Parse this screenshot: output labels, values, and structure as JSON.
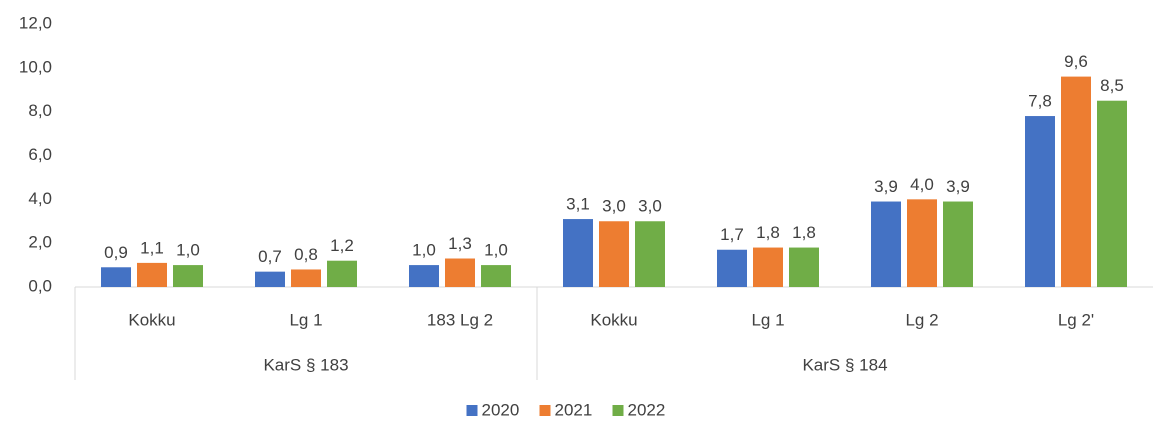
{
  "chart_data": {
    "type": "bar",
    "groups": [
      {
        "label": "KarS § 183",
        "categories": [
          "Kokku",
          "Lg 1",
          "183 Lg 2"
        ]
      },
      {
        "label": "KarS § 184",
        "categories": [
          "Kokku",
          "Lg 1",
          "Lg 2",
          "Lg 2'"
        ]
      }
    ],
    "series": [
      {
        "name": "2020",
        "color": "#4472c4",
        "values": [
          0.9,
          0.7,
          1.0,
          3.1,
          1.7,
          3.9,
          7.8
        ],
        "value_labels": [
          "0,9",
          "0,7",
          "1,0",
          "3,1",
          "1,7",
          "3,9",
          "7,8"
        ]
      },
      {
        "name": "2021",
        "color": "#ed7d31",
        "values": [
          1.1,
          0.8,
          1.3,
          3.0,
          1.8,
          4.0,
          9.6
        ],
        "value_labels": [
          "1,1",
          "0,8",
          "1,3",
          "3,0",
          "1,8",
          "4,0",
          "9,6"
        ]
      },
      {
        "name": "2022",
        "color": "#70ad47",
        "values": [
          1.0,
          1.2,
          1.0,
          3.0,
          1.8,
          3.9,
          8.5
        ],
        "value_labels": [
          "1,0",
          "1,2",
          "1,0",
          "3,0",
          "1,8",
          "3,9",
          "8,5"
        ]
      }
    ],
    "ylim": [
      0,
      12
    ],
    "yticks": [
      {
        "value": 0,
        "label": "0,0"
      },
      {
        "value": 2,
        "label": "2,0"
      },
      {
        "value": 4,
        "label": "4,0"
      },
      {
        "value": 6,
        "label": "6,0"
      },
      {
        "value": 8,
        "label": "8,0"
      },
      {
        "value": 10,
        "label": "10,0"
      },
      {
        "value": 12,
        "label": "12,0"
      }
    ],
    "grid": false,
    "legend": "bottom"
  }
}
